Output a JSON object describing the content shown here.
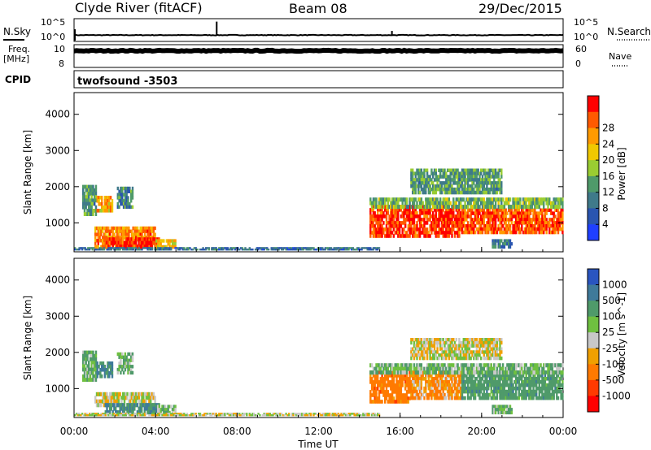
{
  "header": {
    "station": "Clyde River (fitACF)",
    "beam": "Beam 08",
    "date": "29/Dec/2015"
  },
  "colors": {
    "power_scale": [
      "#1f3fff",
      "#2a55b0",
      "#3f7a8a",
      "#4f9a6a",
      "#9acd32",
      "#f0c800",
      "#ff9a00",
      "#ff5a00",
      "#ff0000"
    ],
    "velocity_scale": [
      "#2a55c0",
      "#3f7a9a",
      "#4f9a6a",
      "#6fc040",
      "#c8c8c8",
      "#f0a000",
      "#ff7a00",
      "#ff3a00",
      "#ff0000"
    ]
  },
  "chart_data": [
    {
      "type": "line",
      "panel": "noise",
      "left_label": "N.Sky",
      "right_label": "N.Search",
      "left_ticks": [
        "10^5",
        "10^0"
      ],
      "right_ticks": [
        "10^5",
        "10^0"
      ],
      "ylim_log": [
        0,
        5
      ],
      "level_log": 1.3,
      "spikes": [
        {
          "x": 7.0,
          "y": 4.5
        },
        {
          "x": 15.6,
          "y": 2.3
        }
      ]
    },
    {
      "type": "line",
      "panel": "frequency",
      "left_label": "Freq.",
      "left_unit": "[MHz]",
      "left_ticks": [
        "10",
        "8"
      ],
      "ylim_left": [
        8,
        10
      ],
      "right_label": "Nave",
      "right_ticks": [
        "60",
        "0"
      ],
      "ylim_right": [
        0,
        60
      ],
      "level": 9.5
    },
    {
      "type": "table",
      "panel": "cpid",
      "label": "CPID",
      "text": "twofsound  -3503"
    },
    {
      "type": "heatmap",
      "panel": "power",
      "ylabel": "Slant Range [km]",
      "yticks": [
        1000,
        2000,
        3000,
        4000
      ],
      "ylim": [
        200,
        4600
      ],
      "xlim": [
        0,
        24
      ],
      "colorbar_label": "Power [dB]",
      "colorbar_ticks": [
        4,
        8,
        12,
        16,
        20,
        24,
        28
      ],
      "clim": [
        0,
        32
      ],
      "regions": [
        {
          "t0": 0.4,
          "t1": 1.1,
          "r0": 1200,
          "r1": 2050,
          "v": 12
        },
        {
          "t0": 1.1,
          "t1": 1.9,
          "r0": 1300,
          "r1": 1750,
          "v": 22
        },
        {
          "t0": 2.1,
          "t1": 2.9,
          "r0": 1400,
          "r1": 2000,
          "v": 10
        },
        {
          "t0": 1.0,
          "t1": 4.0,
          "r0": 300,
          "r1": 900,
          "v": 24
        },
        {
          "t0": 1.5,
          "t1": 4.2,
          "r0": 300,
          "r1": 600,
          "v": 29
        },
        {
          "t0": 4.0,
          "t1": 5.0,
          "r0": 300,
          "r1": 550,
          "v": 20
        },
        {
          "t0": 0.0,
          "t1": 15.0,
          "r0": 250,
          "r1": 330,
          "v": 8
        },
        {
          "t0": 14.5,
          "t1": 19.0,
          "r0": 600,
          "r1": 1500,
          "v": 29
        },
        {
          "t0": 19.0,
          "t1": 24.0,
          "r0": 700,
          "r1": 1400,
          "v": 27
        },
        {
          "t0": 14.5,
          "t1": 24.0,
          "r0": 1400,
          "r1": 1700,
          "v": 14
        },
        {
          "t0": 16.5,
          "t1": 21.0,
          "r0": 1800,
          "r1": 2500,
          "v": 12
        },
        {
          "t0": 20.5,
          "t1": 21.5,
          "r0": 300,
          "r1": 550,
          "v": 10
        }
      ]
    },
    {
      "type": "heatmap",
      "panel": "velocity",
      "ylabel": "Slant Range [km]",
      "xlabel": "Time UT",
      "xticks": [
        "00:00",
        "04:00",
        "08:00",
        "12:00",
        "16:00",
        "20:00",
        "00:00"
      ],
      "yticks": [
        1000,
        2000,
        3000,
        4000
      ],
      "ylim": [
        200,
        4600
      ],
      "xlim": [
        0,
        24
      ],
      "colorbar_label": "Velocity [m s^-1]",
      "colorbar_ticks": [
        "1000",
        "500",
        "100",
        "25",
        "-25",
        "-100",
        "-500",
        "-1000"
      ],
      "regions": [
        {
          "t0": 0.4,
          "t1": 1.1,
          "r0": 1200,
          "r1": 2050,
          "v": 100
        },
        {
          "t0": 1.1,
          "t1": 1.9,
          "r0": 1300,
          "r1": 1750,
          "v": 500
        },
        {
          "t0": 2.1,
          "t1": 2.9,
          "r0": 1400,
          "r1": 2000,
          "v": 100
        },
        {
          "t0": 1.0,
          "t1": 4.0,
          "r0": 500,
          "r1": 900,
          "v": 0
        },
        {
          "t0": 1.5,
          "t1": 4.2,
          "r0": 300,
          "r1": 600,
          "v": 500
        },
        {
          "t0": 4.0,
          "t1": 5.0,
          "r0": 300,
          "r1": 550,
          "v": 100
        },
        {
          "t0": 0.0,
          "t1": 15.0,
          "r0": 250,
          "r1": 330,
          "v": 0
        },
        {
          "t0": 14.5,
          "t1": 16.5,
          "r0": 600,
          "r1": 1500,
          "v": -300
        },
        {
          "t0": 16.5,
          "t1": 19.0,
          "r0": 700,
          "r1": 1500,
          "v": -120
        },
        {
          "t0": 19.0,
          "t1": 24.0,
          "r0": 700,
          "r1": 1500,
          "v": 300
        },
        {
          "t0": 14.5,
          "t1": 24.0,
          "r0": 1400,
          "r1": 1700,
          "v": 100
        },
        {
          "t0": 16.5,
          "t1": 21.0,
          "r0": 1800,
          "r1": 2400,
          "v": 0
        },
        {
          "t0": 20.5,
          "t1": 21.5,
          "r0": 300,
          "r1": 550,
          "v": 100
        }
      ]
    }
  ]
}
